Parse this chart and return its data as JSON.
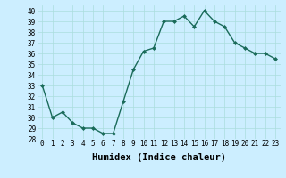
{
  "x": [
    0,
    1,
    2,
    3,
    4,
    5,
    6,
    7,
    8,
    9,
    10,
    11,
    12,
    13,
    14,
    15,
    16,
    17,
    18,
    19,
    20,
    21,
    22,
    23
  ],
  "y": [
    33.0,
    30.0,
    30.5,
    29.5,
    29.0,
    29.0,
    28.5,
    28.5,
    31.5,
    34.5,
    36.2,
    36.5,
    39.0,
    39.0,
    39.5,
    38.5,
    40.0,
    39.0,
    38.5,
    37.0,
    36.5,
    36.0,
    36.0,
    35.5
  ],
  "line_color": "#1a6b5a",
  "marker": "D",
  "marker_size": 2.0,
  "bg_color": "#cceeff",
  "grid_color": "#aadddd",
  "xlabel": "Humidex (Indice chaleur)",
  "ylim": [
    28,
    40.5
  ],
  "xlim": [
    -0.5,
    23.5
  ],
  "yticks": [
    28,
    29,
    30,
    31,
    32,
    33,
    34,
    35,
    36,
    37,
    38,
    39,
    40
  ],
  "xticks": [
    0,
    1,
    2,
    3,
    4,
    5,
    6,
    7,
    8,
    9,
    10,
    11,
    12,
    13,
    14,
    15,
    16,
    17,
    18,
    19,
    20,
    21,
    22,
    23
  ],
  "xlabel_fontsize": 7.5,
  "tick_fontsize": 5.5,
  "line_width": 1.0
}
